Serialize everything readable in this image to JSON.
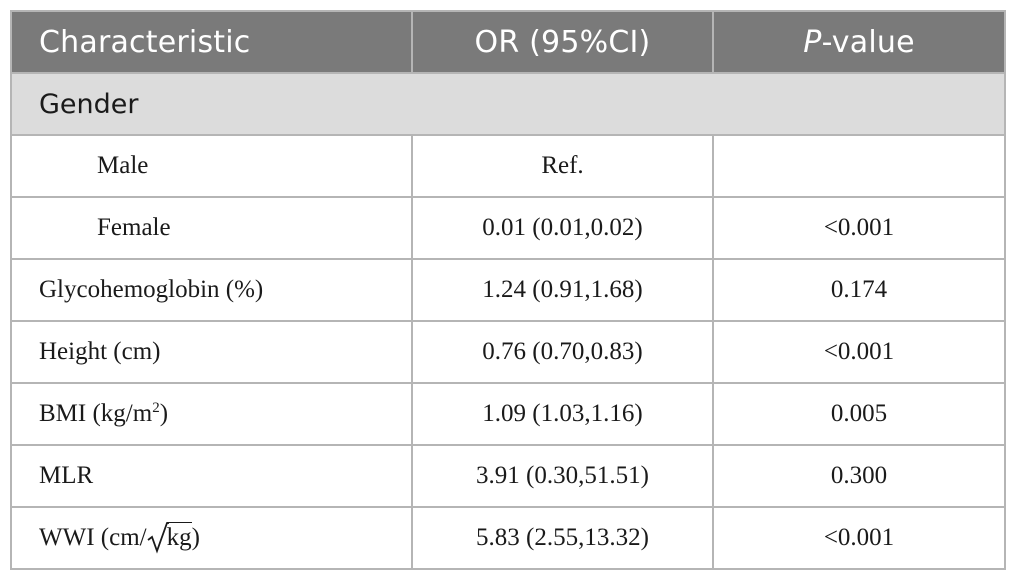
{
  "table": {
    "headers": {
      "characteristic": "Characteristic",
      "or": "OR (95%CI)",
      "p_prefix": "P",
      "p_suffix": "-value"
    },
    "section_gender": "Gender",
    "rows": [
      {
        "label": "Male",
        "or": "Ref.",
        "p": ""
      },
      {
        "label": "Female",
        "or": "0.01 (0.01,0.02)",
        "p": "<0.001"
      },
      {
        "label": "Glycohemoglobin (%)",
        "or": "1.24 (0.91,1.68)",
        "p": "0.174"
      },
      {
        "label": "Height (cm)",
        "or": "0.76 (0.70,0.83)",
        "p": "<0.001"
      },
      {
        "label_main": "BMI (kg/m",
        "label_sup": "2",
        "label_end": ")",
        "or": "1.09 (1.03,1.16)",
        "p": "0.005"
      },
      {
        "label": "MLR",
        "or": "3.91 (0.30,51.51)",
        "p": "0.300"
      },
      {
        "label_main": "WWI (cm/",
        "label_radicand": "kg",
        "label_end": ")",
        "or": "5.83 (2.55,13.32)",
        "p": "<0.001"
      }
    ]
  }
}
